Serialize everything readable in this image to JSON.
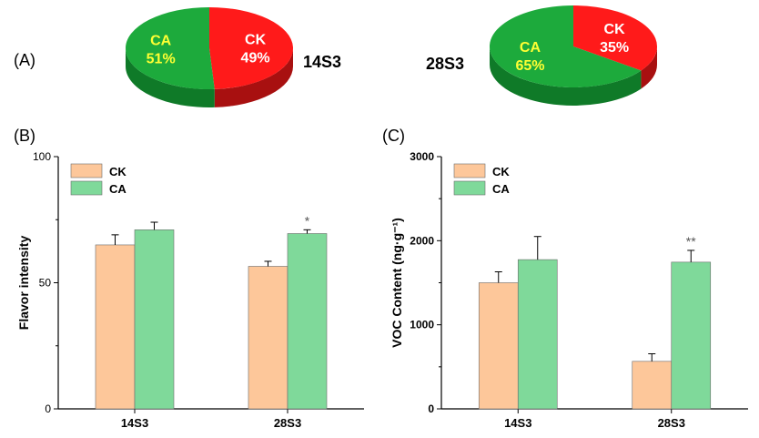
{
  "colors": {
    "ck": "#fdc79a",
    "ca": "#7fd99a",
    "pie_ck": "#ff1a1a",
    "pie_ck_side": "#a81010",
    "pie_ca": "#1daa3c",
    "pie_ca_side": "#0f7a28",
    "pie_label_ck": "#ffffff",
    "pie_label_ca": "#ffff33"
  },
  "chart_data": [
    {
      "type": "pie",
      "panel_label": "(A)",
      "title": "14S3",
      "slices": [
        {
          "label": "CK",
          "value": 49,
          "text": "49%"
        },
        {
          "label": "CA",
          "value": 51,
          "text": "51%"
        }
      ]
    },
    {
      "type": "pie",
      "title": "28S3",
      "slices": [
        {
          "label": "CK",
          "value": 35,
          "text": "35%"
        },
        {
          "label": "CA",
          "value": 65,
          "text": "65%"
        }
      ]
    },
    {
      "type": "bar",
      "panel_label": "(B)",
      "ylabel": "Flavor intensity",
      "ylim": [
        0,
        100
      ],
      "yticks": [
        0,
        50,
        100
      ],
      "categories": [
        "14S3",
        "28S3"
      ],
      "legend": [
        "CK",
        "CA"
      ],
      "legend_position": "top-left",
      "series": [
        {
          "name": "CK",
          "values": [
            65,
            56.5
          ],
          "errors": [
            4,
            2
          ]
        },
        {
          "name": "CA",
          "values": [
            71,
            69.5
          ],
          "errors": [
            3,
            1.5
          ]
        }
      ],
      "annotations": [
        {
          "category": "28S3",
          "series": "CA",
          "text": "*"
        }
      ]
    },
    {
      "type": "bar",
      "panel_label": "(C)",
      "ylabel": "VOC Content (ng·g⁻¹)",
      "ylim": [
        0,
        3000
      ],
      "yticks": [
        0,
        1000,
        2000,
        3000
      ],
      "categories": [
        "14S3",
        "28S3"
      ],
      "legend": [
        "CK",
        "CA"
      ],
      "legend_position": "top-left",
      "series": [
        {
          "name": "CK",
          "values": [
            1500,
            565
          ],
          "errors": [
            130,
            90
          ]
        },
        {
          "name": "CA",
          "values": [
            1775,
            1745
          ],
          "errors": [
            275,
            140
          ]
        }
      ],
      "annotations": [
        {
          "category": "28S3",
          "series": "CA",
          "text": "**"
        }
      ]
    }
  ]
}
